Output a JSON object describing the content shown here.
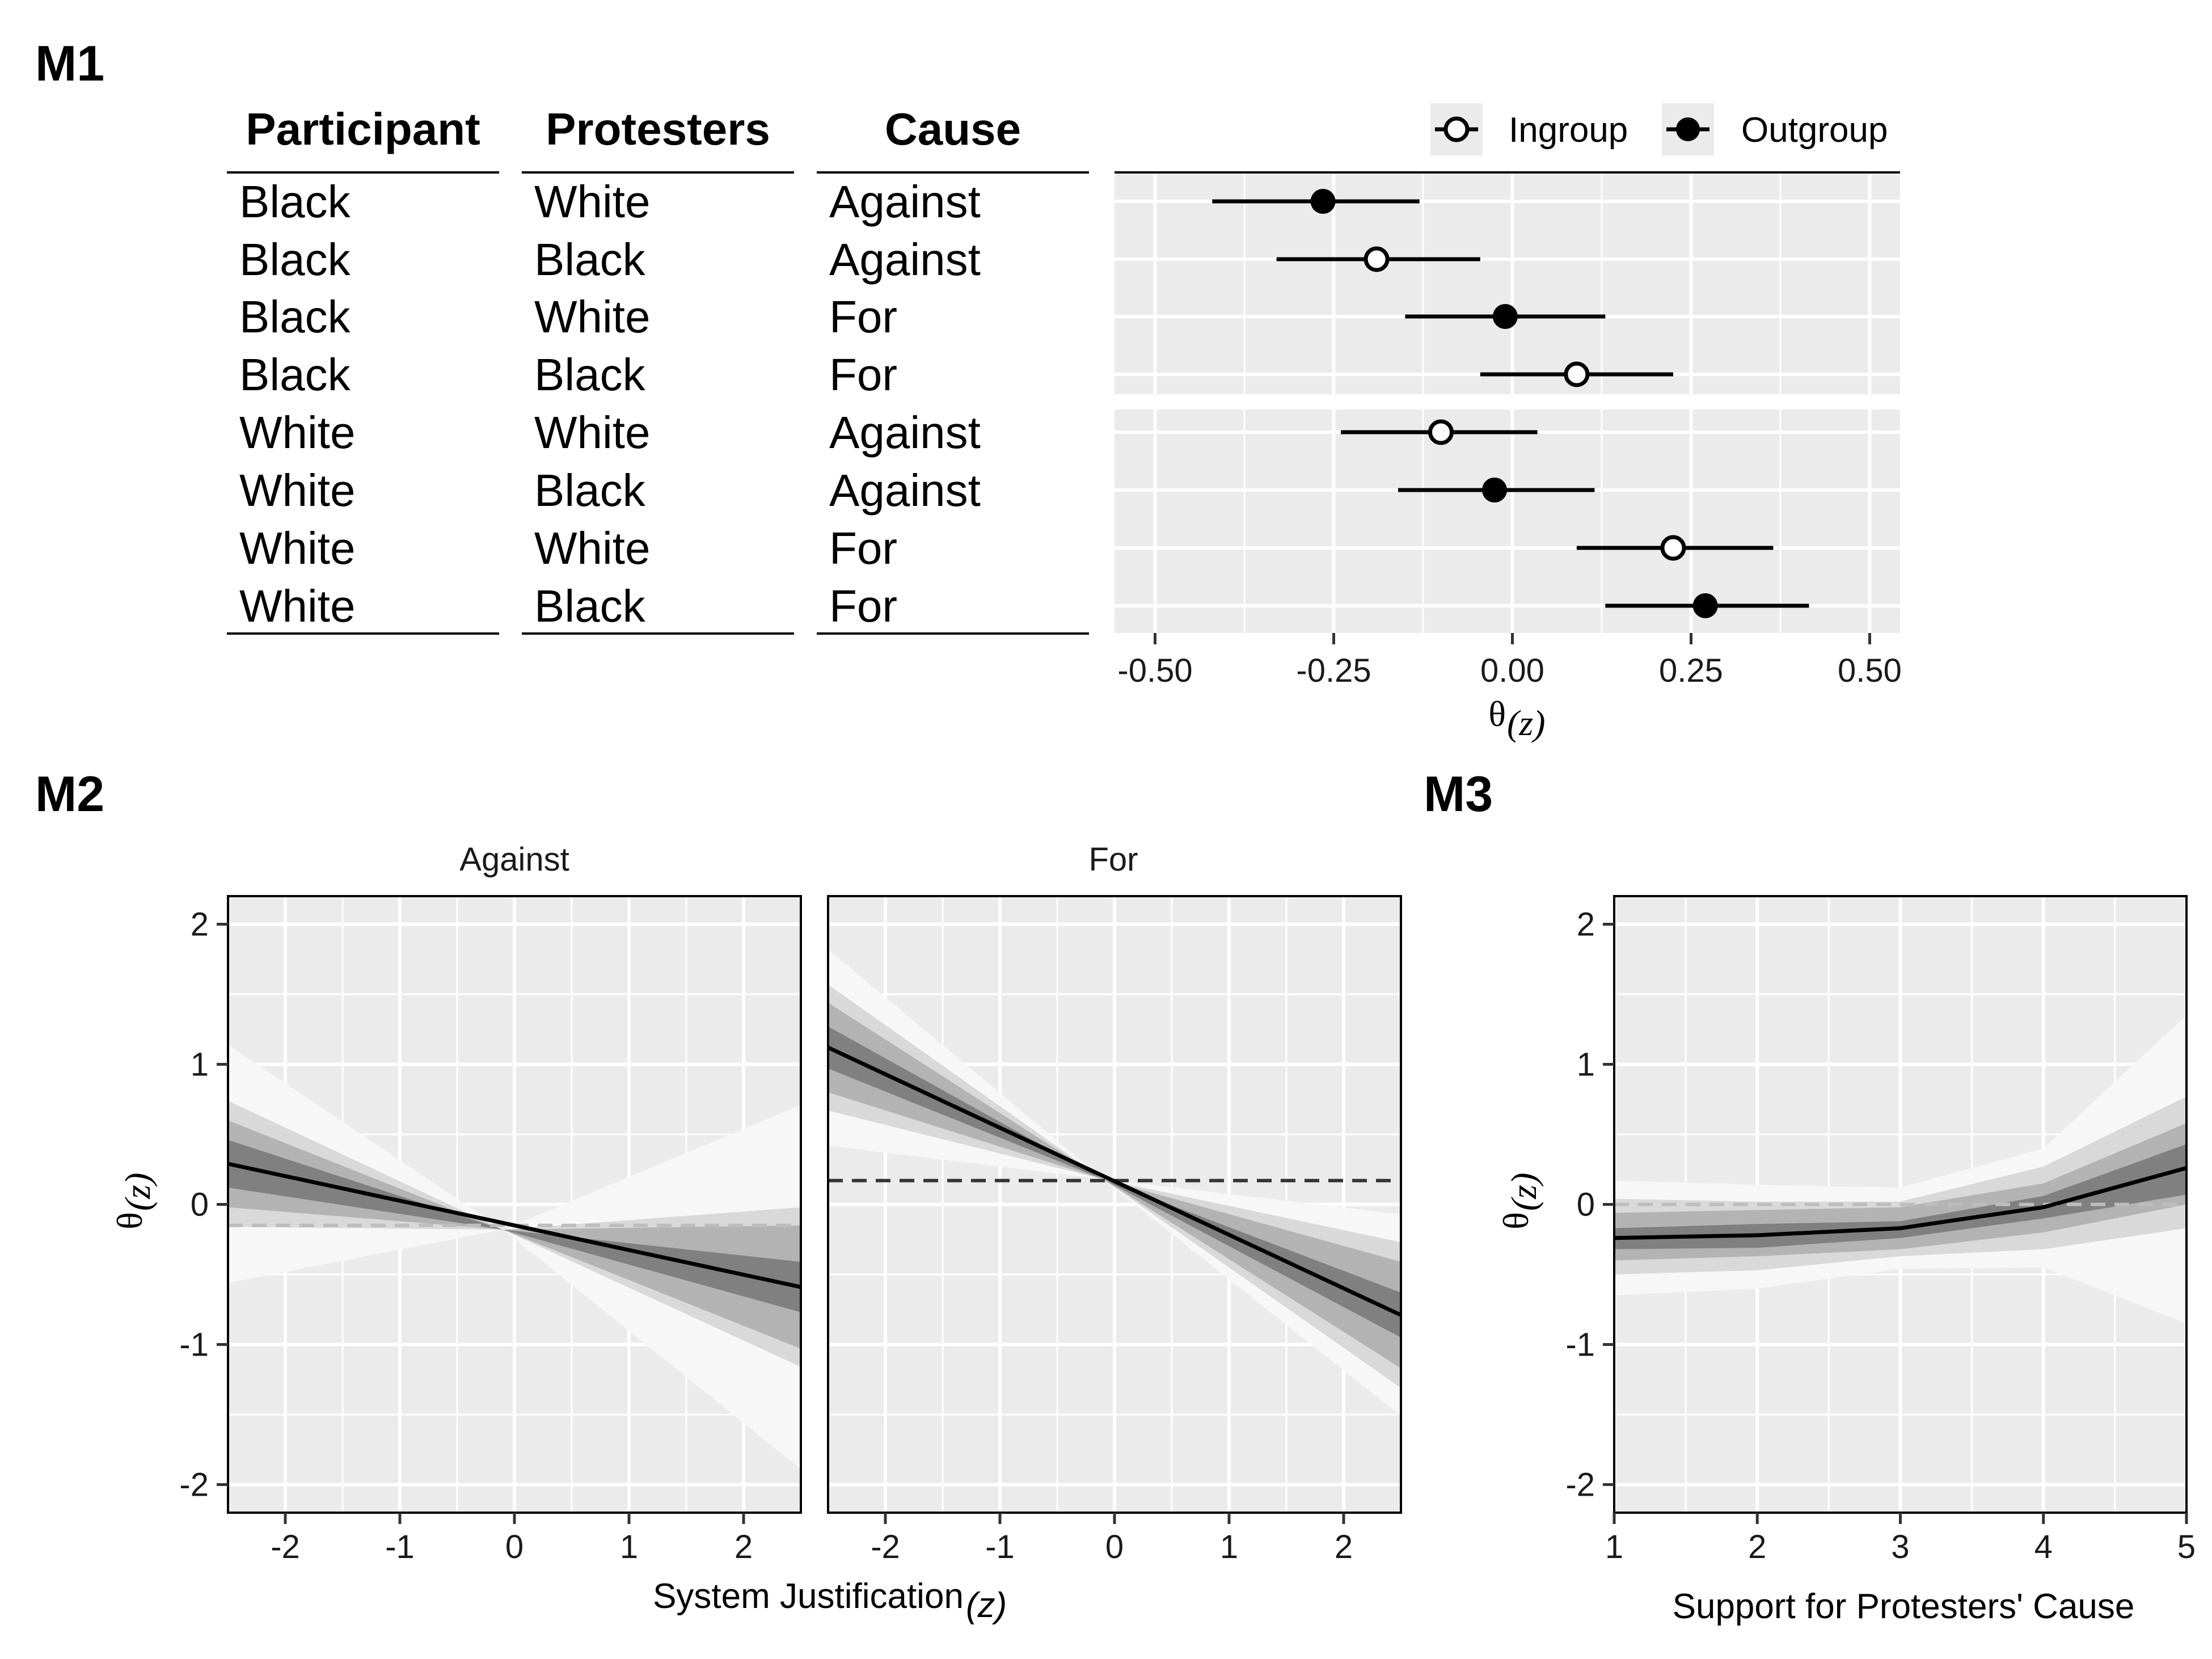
{
  "panels": {
    "m1": "M1",
    "m2": "M2",
    "m3": "M3"
  },
  "colors": {
    "panel_bg": "#ebebeb",
    "grid": "#ffffff",
    "line": "#000000",
    "ref_dashed_m2_for": "#333333",
    "ref_dashed_light": "#bdbdbd"
  },
  "chart_data": [
    {
      "type": "scatter",
      "panel": "M1",
      "table_headers": [
        "Participant",
        "Protesters",
        "Cause"
      ],
      "rows": [
        {
          "participant": "Black",
          "protesters": "White",
          "cause": "Against",
          "group": "Outgroup",
          "estimate": -0.265,
          "lower": -0.42,
          "upper": -0.13
        },
        {
          "participant": "Black",
          "protesters": "Black",
          "cause": "Against",
          "group": "Ingroup",
          "estimate": -0.19,
          "lower": -0.33,
          "upper": -0.045
        },
        {
          "participant": "Black",
          "protesters": "White",
          "cause": "For",
          "group": "Outgroup",
          "estimate": -0.01,
          "lower": -0.15,
          "upper": 0.13
        },
        {
          "participant": "Black",
          "protesters": "Black",
          "cause": "For",
          "group": "Ingroup",
          "estimate": 0.09,
          "lower": -0.045,
          "upper": 0.225
        },
        {
          "participant": "White",
          "protesters": "White",
          "cause": "Against",
          "group": "Ingroup",
          "estimate": -0.1,
          "lower": -0.24,
          "upper": 0.035
        },
        {
          "participant": "White",
          "protesters": "Black",
          "cause": "Against",
          "group": "Outgroup",
          "estimate": -0.025,
          "lower": -0.16,
          "upper": 0.115
        },
        {
          "participant": "White",
          "protesters": "White",
          "cause": "For",
          "group": "Ingroup",
          "estimate": 0.225,
          "lower": 0.09,
          "upper": 0.365
        },
        {
          "participant": "White",
          "protesters": "Black",
          "cause": "For",
          "group": "Outgroup",
          "estimate": 0.27,
          "lower": 0.13,
          "upper": 0.415
        }
      ],
      "legend": [
        "Ingroup",
        "Outgroup"
      ],
      "legend_position": "top-right",
      "xlim": [
        -0.55,
        0.55
      ],
      "xticks": [
        "-0.50",
        "-0.25",
        "0.00",
        "0.25",
        "0.50"
      ],
      "xtick_values": [
        -0.5,
        -0.25,
        0,
        0.25,
        0.5
      ],
      "xlabel": "θ",
      "xlabel_sub": "(z)",
      "grid": true
    },
    {
      "type": "line",
      "panel": "M2",
      "facets": [
        "Against",
        "For"
      ],
      "xlabel": "System Justification",
      "xlabel_sub": "(z)",
      "ylabel": "θ",
      "ylabel_sub": "(z)",
      "xlim": [
        -2.5,
        2.5
      ],
      "ylim": [
        -2.2,
        2.2
      ],
      "xticks": [
        -2,
        -1,
        0,
        1,
        2
      ],
      "yticks": [
        -2,
        -1,
        0,
        1,
        2
      ],
      "x_pivot": -0.1,
      "series": [
        {
          "facet": "Against",
          "x": [
            -2.5,
            2.5
          ],
          "y": [
            0.29,
            -0.59
          ],
          "pivot_y": -0.18,
          "reference": -0.15,
          "band_halfwidths_at_left": [
            0.85,
            0.45,
            0.31,
            0.17
          ],
          "band_halfwidths_at_right": [
            1.3,
            0.57,
            0.44,
            0.18
          ],
          "reference_style": "light"
        },
        {
          "facet": "For",
          "x": [
            -2.5,
            2.5
          ],
          "y": [
            1.12,
            -0.79
          ],
          "pivot_y": 0.18,
          "reference": 0.17,
          "band_halfwidths_at_left": [
            0.7,
            0.45,
            0.32,
            0.15
          ],
          "band_halfwidths_at_right": [
            0.72,
            0.52,
            0.38,
            0.16
          ],
          "reference_style": "dark"
        }
      ],
      "grid": true
    },
    {
      "type": "line",
      "panel": "M3",
      "xlabel": "Support for Protesters' Cause",
      "ylabel": "θ",
      "ylabel_sub": "(z)",
      "xlim": [
        1,
        5
      ],
      "ylim": [
        -2.2,
        2.2
      ],
      "xticks": [
        1,
        2,
        3,
        4,
        5
      ],
      "yticks": [
        -2,
        -1,
        0,
        1,
        2
      ],
      "x": [
        1,
        2,
        3,
        4,
        5
      ],
      "y": [
        -0.24,
        -0.22,
        -0.17,
        -0.02,
        0.26
      ],
      "bands": [
        {
          "lower": [
            -0.65,
            -0.6,
            -0.46,
            -0.45,
            -0.85
          ],
          "upper": [
            0.17,
            0.14,
            0.12,
            0.4,
            1.35
          ]
        },
        {
          "lower": [
            -0.5,
            -0.47,
            -0.37,
            -0.32,
            -0.17
          ],
          "upper": [
            0.04,
            0.02,
            0.02,
            0.27,
            0.77
          ]
        },
        {
          "lower": [
            -0.4,
            -0.37,
            -0.32,
            -0.2,
            0.0
          ],
          "upper": [
            -0.06,
            -0.04,
            -0.02,
            0.15,
            0.58
          ]
        },
        {
          "lower": [
            -0.32,
            -0.31,
            -0.24,
            -0.1,
            0.07
          ],
          "upper": [
            -0.17,
            -0.14,
            -0.12,
            0.06,
            0.43
          ]
        }
      ],
      "reference": 0.0,
      "grid": true
    }
  ]
}
